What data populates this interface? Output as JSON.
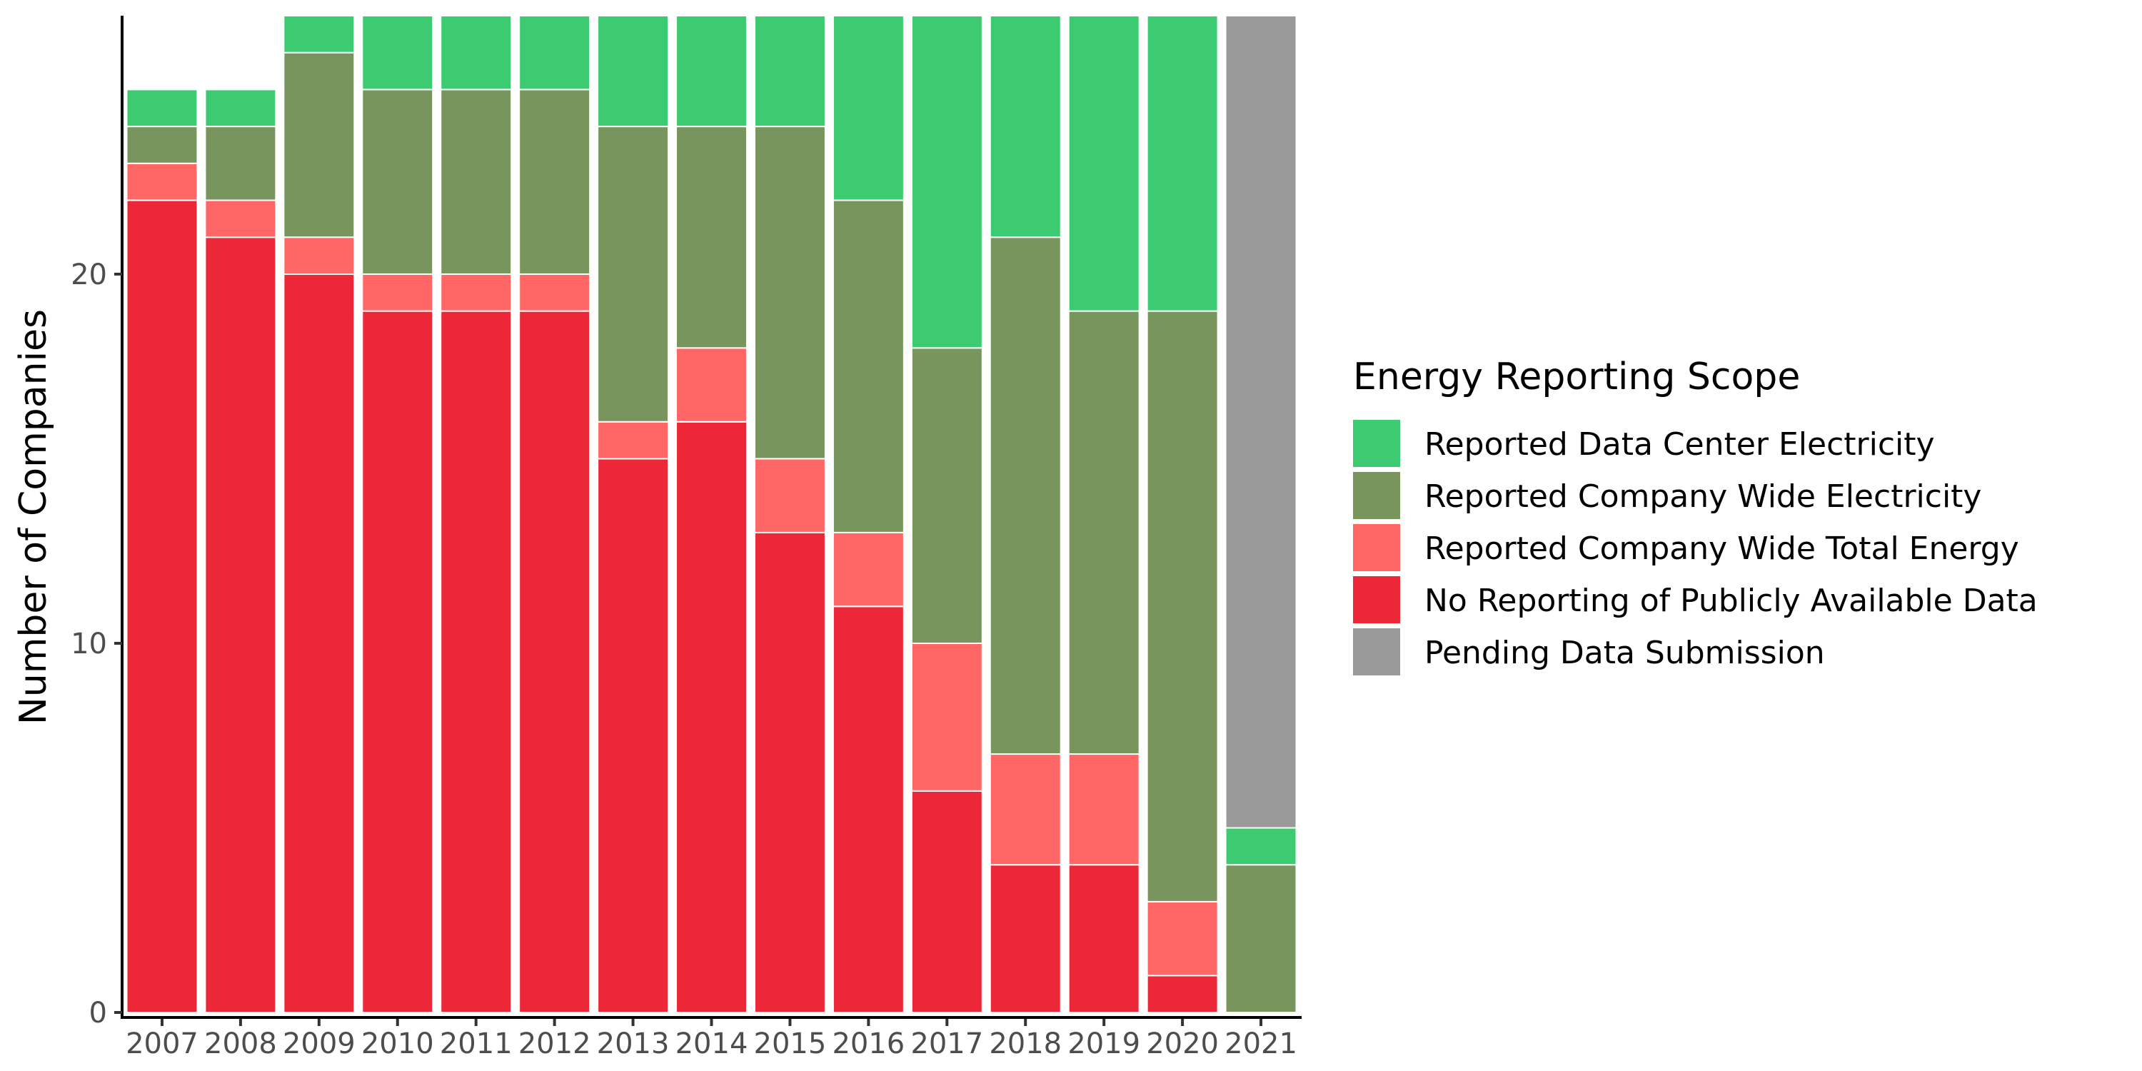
{
  "chart_data": {
    "type": "bar",
    "stacked": true,
    "title": "",
    "xlabel": "",
    "ylabel": "Number of Companies",
    "ylim": [
      0,
      27
    ],
    "y_ticks": [
      0,
      10,
      20
    ],
    "grid": false,
    "legend_position": "right",
    "legend_title": "Energy Reporting Scope",
    "categories": [
      "2007",
      "2008",
      "2009",
      "2010",
      "2011",
      "2012",
      "2013",
      "2014",
      "2015",
      "2016",
      "2017",
      "2018",
      "2019",
      "2020",
      "2021"
    ],
    "series": [
      {
        "name": "No Reporting of Publicly Available Data",
        "color": "#EC2737",
        "values": [
          22,
          21,
          20,
          19,
          19,
          19,
          15,
          16,
          13,
          11,
          6,
          4,
          4,
          1,
          0
        ]
      },
      {
        "name": "Reported Company Wide Total Energy",
        "color": "#FF6666",
        "values": [
          1,
          1,
          1,
          1,
          1,
          1,
          1,
          2,
          2,
          2,
          4,
          3,
          3,
          2,
          0
        ]
      },
      {
        "name": "Reported Company Wide Electricity",
        "color": "#77955D",
        "values": [
          1,
          2,
          5,
          5,
          5,
          5,
          8,
          6,
          9,
          9,
          8,
          14,
          12,
          16,
          4
        ]
      },
      {
        "name": "Reported Data Center Electricity",
        "color": "#3CCB70",
        "values": [
          1,
          1,
          1,
          2,
          2,
          2,
          3,
          3,
          3,
          5,
          9,
          6,
          8,
          8,
          1
        ]
      },
      {
        "name": "Pending Data Submission",
        "color": "#999999",
        "values": [
          0,
          0,
          0,
          0,
          0,
          0,
          0,
          0,
          0,
          0,
          0,
          0,
          0,
          0,
          22
        ]
      }
    ],
    "legend_order": [
      "Reported Data Center Electricity",
      "Reported Company Wide Electricity",
      "Reported Company Wide Total Energy",
      "No Reporting of Publicly Available Data",
      "Pending Data Submission"
    ]
  }
}
